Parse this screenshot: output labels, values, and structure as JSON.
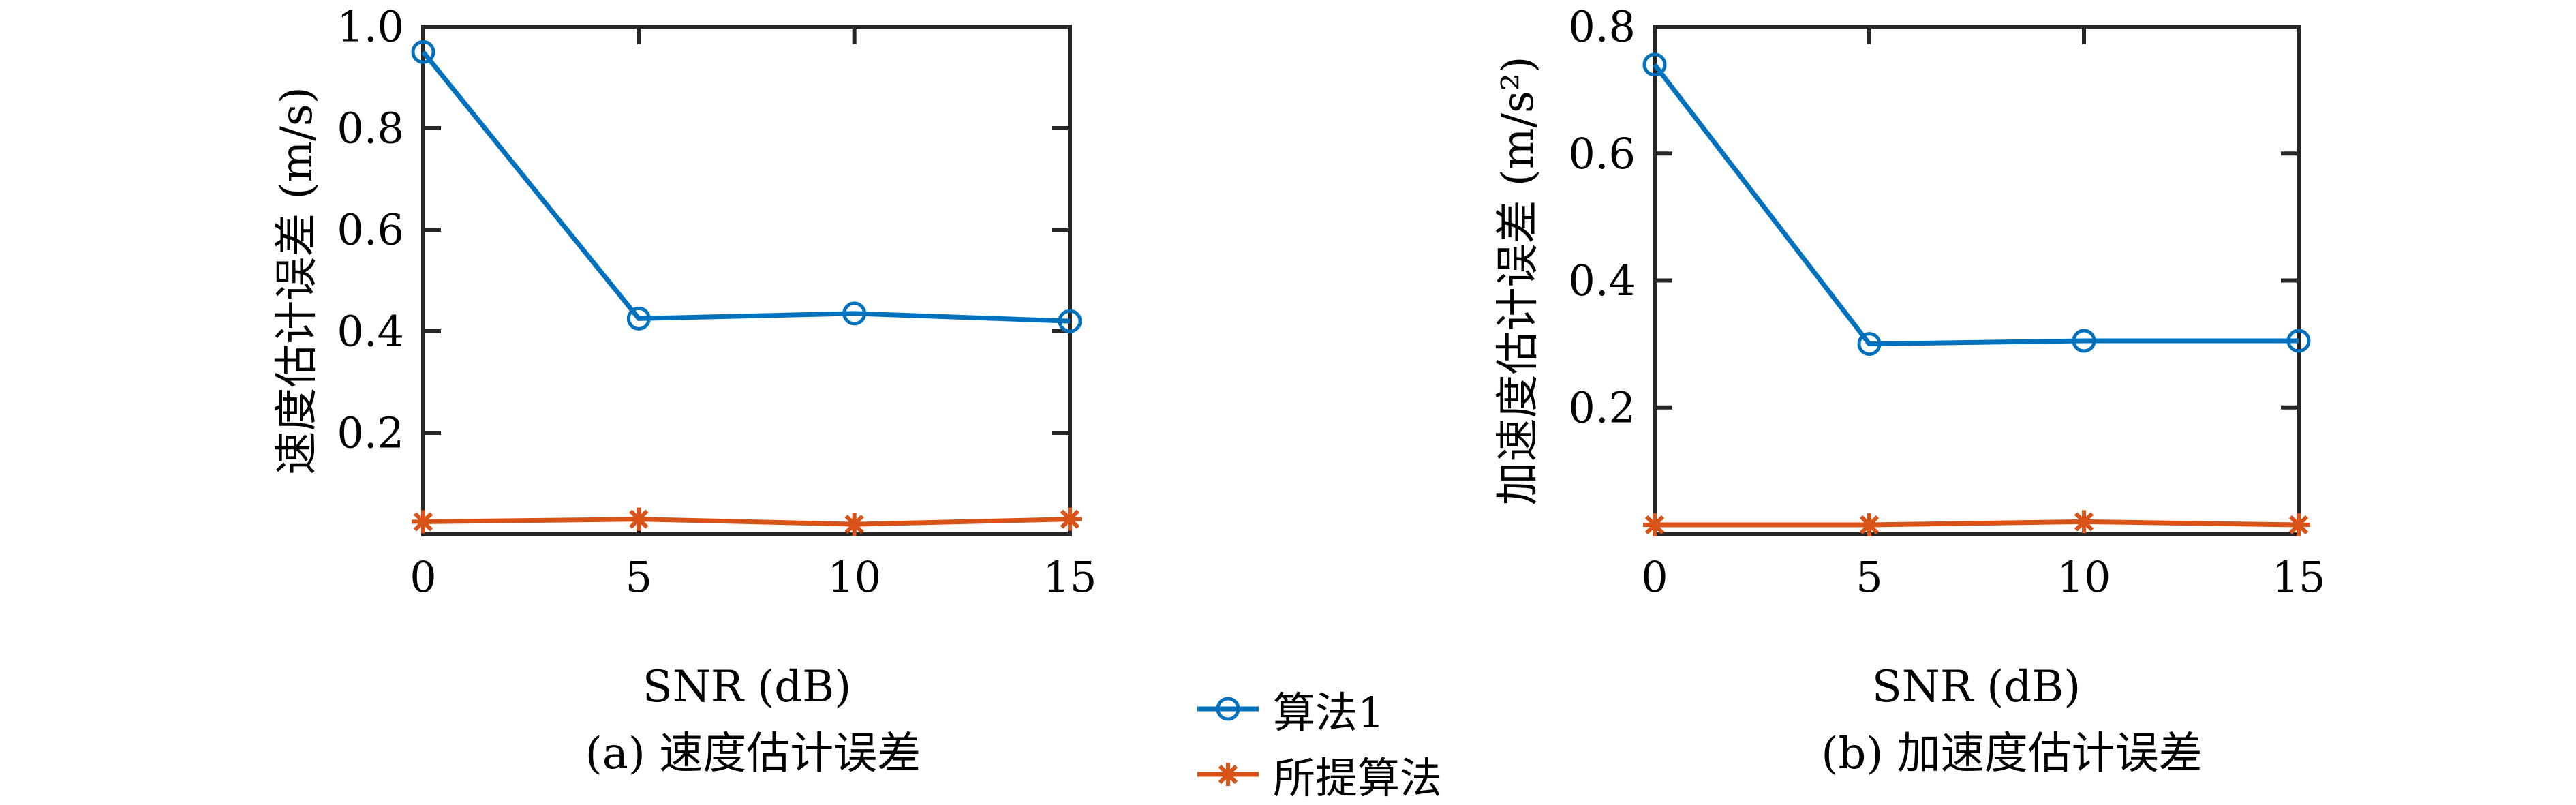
{
  "page": {
    "background": "#ffffff"
  },
  "colors": {
    "algo1": "#0072BD",
    "proposed": "#D95319",
    "axis": "#262626",
    "text": "#000000"
  },
  "legend": {
    "position": "bottom-center",
    "items": [
      {
        "label": "算法1",
        "series": "algo1",
        "marker": "circle",
        "color_key": "algo1"
      },
      {
        "label": "所提算法",
        "series": "proposed",
        "marker": "asterisk",
        "color_key": "proposed"
      }
    ]
  },
  "chart_data": [
    {
      "id": "velocity-error",
      "type": "line",
      "title": "(a) 速度估计误差",
      "xlabel": "SNR (dB)",
      "ylabel": "速度估计误差 (m/s)",
      "xlim": [
        0,
        15
      ],
      "ylim": [
        0,
        1.0
      ],
      "grid": false,
      "legend_position": "shared-bottom",
      "xticks": {
        "values": [
          0,
          5,
          10,
          15
        ],
        "labels": [
          "0",
          "5",
          "10",
          "15"
        ]
      },
      "yticks": {
        "values": [
          0.2,
          0.4,
          0.6,
          0.8,
          1.0
        ],
        "labels": [
          "0.2",
          "0.4",
          "0.6",
          "0.8",
          "1.0"
        ]
      },
      "x": [
        0,
        5,
        10,
        15
      ],
      "series": [
        {
          "name": "算法1",
          "color_key": "algo1",
          "marker": "circle",
          "values": [
            0.95,
            0.425,
            0.435,
            0.42
          ]
        },
        {
          "name": "所提算法",
          "color_key": "proposed",
          "marker": "asterisk",
          "values": [
            0.025,
            0.03,
            0.02,
            0.03
          ]
        }
      ]
    },
    {
      "id": "acceleration-error",
      "type": "line",
      "title": "(b) 加速度估计误差",
      "xlabel": "SNR (dB)",
      "ylabel": "加速度估计误差 (m/s²)",
      "xlim": [
        0,
        15
      ],
      "ylim": [
        0,
        0.8
      ],
      "grid": false,
      "legend_position": "shared-bottom",
      "xticks": {
        "values": [
          0,
          5,
          10,
          15
        ],
        "labels": [
          "0",
          "5",
          "10",
          "15"
        ]
      },
      "yticks": {
        "values": [
          0.2,
          0.4,
          0.6,
          0.8
        ],
        "labels": [
          "0.2",
          "0.4",
          "0.6",
          "0.8"
        ]
      },
      "x": [
        0,
        5,
        10,
        15
      ],
      "series": [
        {
          "name": "算法1",
          "color_key": "algo1",
          "marker": "circle",
          "values": [
            0.74,
            0.3,
            0.305,
            0.305
          ]
        },
        {
          "name": "所提算法",
          "color_key": "proposed",
          "marker": "asterisk",
          "values": [
            0.015,
            0.015,
            0.02,
            0.015
          ]
        }
      ]
    }
  ]
}
